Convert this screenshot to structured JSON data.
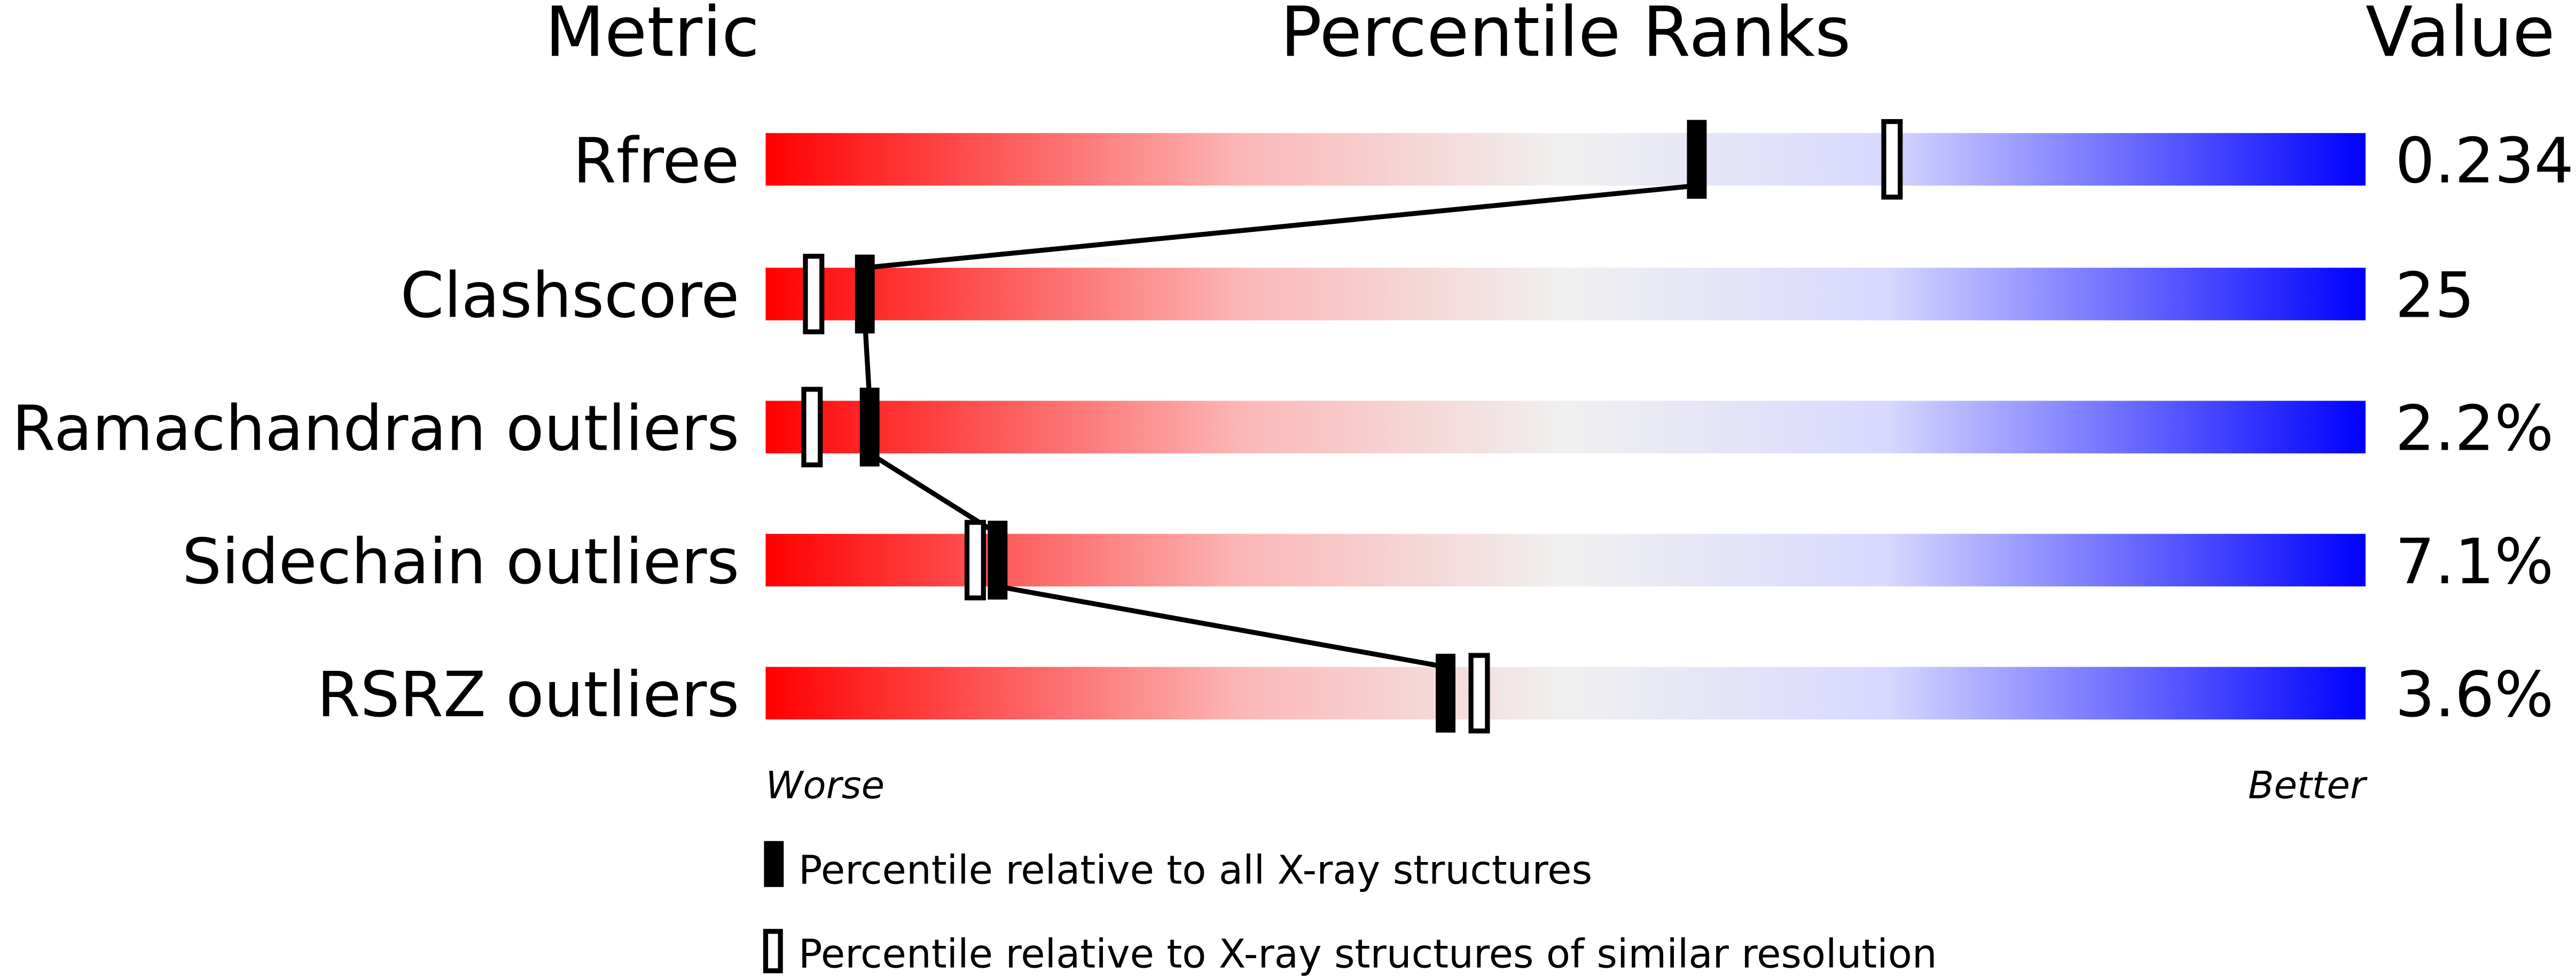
{
  "chart_data": {
    "type": "bar",
    "headers": {
      "metric": "Metric",
      "ranks": "Percentile Ranks",
      "value": "Value"
    },
    "axis_range": [
      0,
      100
    ],
    "worse_label": "Worse",
    "better_label": "Better",
    "gradient_colors": [
      "#ff0000",
      "#f0f0f0",
      "#d8d8ff",
      "#0000ff"
    ],
    "metrics": [
      {
        "name": "Rfree",
        "value": "0.234",
        "percentile_all": 58.2,
        "percentile_similar": 70.4
      },
      {
        "name": "Clashscore",
        "value": "25",
        "percentile_all": 6.2,
        "percentile_similar": 3.0
      },
      {
        "name": "Ramachandran outliers",
        "value": "2.2%",
        "percentile_all": 6.5,
        "percentile_similar": 2.9
      },
      {
        "name": "Sidechain outliers",
        "value": "7.1%",
        "percentile_all": 14.5,
        "percentile_similar": 13.1
      },
      {
        "name": "RSRZ outliers",
        "value": "3.6%",
        "percentile_all": 42.5,
        "percentile_similar": 44.6
      }
    ],
    "legend": [
      {
        "marker": "filled",
        "label": "Percentile relative to all X-ray structures"
      },
      {
        "marker": "open",
        "label": "Percentile relative to X-ray structures of similar resolution"
      }
    ]
  }
}
